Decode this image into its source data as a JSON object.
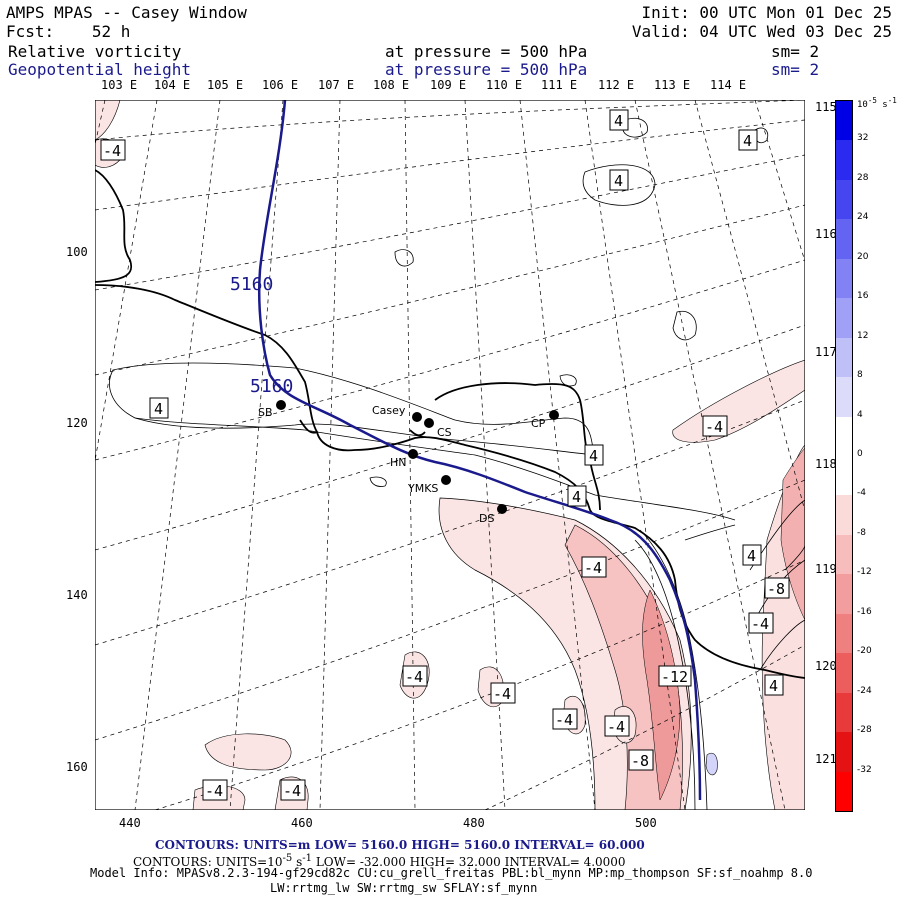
{
  "header": {
    "title": "AMPS MPAS -- Casey Window",
    "init": "Init: 00 UTC Mon 01 Dec 25",
    "fcst_label": "Fcst:",
    "fcst_value": "52 h",
    "valid": "Valid: 04 UTC Wed 03 Dec 25",
    "field1": "Relative vorticity",
    "field1_pressure": "at pressure =  500 hPa",
    "field1_sm": "sm= 2",
    "field2": "Geopotential height",
    "field2_pressure": "at pressure =  500 hPa",
    "field2_sm": "sm= 2"
  },
  "lon_top_labels": [
    "103 E",
    "104 E",
    "105 E",
    "106 E",
    "107 E",
    "108 E",
    "109 E",
    "110 E",
    "111 E",
    "112 E",
    "113 E",
    "114 E"
  ],
  "lon_right_labels": [
    "115 E",
    "116 E",
    "117 E",
    "118 E",
    "119 E",
    "120 E",
    "121 E"
  ],
  "x_ticks": [
    "440",
    "460",
    "480",
    "500"
  ],
  "y_ticks": [
    "100",
    "120",
    "140",
    "160"
  ],
  "stations": [
    {
      "name": "SB"
    },
    {
      "name": "Casey"
    },
    {
      "name": "CS"
    },
    {
      "name": "CP"
    },
    {
      "name": "HN"
    },
    {
      "name": "YMKS"
    },
    {
      "name": "DS"
    }
  ],
  "contour_labels": {
    "height": [
      "5160",
      "5160"
    ],
    "vorticity": [
      "-4",
      "4",
      "4",
      "4",
      "4",
      "4",
      "4",
      "-4",
      "-4",
      "4",
      "4",
      "4",
      "-4",
      "-4",
      "-4",
      "-4",
      "-4",
      "-4",
      "-4",
      "-12",
      "-8",
      "-8",
      "-4",
      "4"
    ]
  },
  "colorbar": {
    "unit": "10^-5 s^-1",
    "unit_base": "10",
    "unit_exp": "-5",
    "unit_tail": "s",
    "unit_tail_exp": "-1",
    "labels": [
      "32",
      "28",
      "24",
      "20",
      "16",
      "12",
      "8",
      "4",
      "0",
      "-4",
      "-8",
      "-12",
      "-16",
      "-20",
      "-24",
      "-28",
      "-32"
    ],
    "colors": [
      "#0000e6",
      "#2a2af0",
      "#4646f0",
      "#6464f2",
      "#8282f4",
      "#a0a0f6",
      "#c0c0f8",
      "#dcdcfa",
      "#ffffff",
      "#ffffff",
      "#fbdada",
      "#f7bcbc",
      "#f39e9e",
      "#ef8080",
      "#ec5e5e",
      "#e83a3a",
      "#e41212",
      "#ff0000"
    ]
  },
  "footer": {
    "line1_label": "CONTOURS:  UNITS=m  LOW=  5160.0           HIGH=  5160.0          INTERVAL=   60.000",
    "line2_label": "CONTOURS:  UNITS=10",
    "line2_exp": "-5",
    "line2_unit": "s",
    "line2_unit_exp": "-1",
    "line2_rest": "  LOW= -32.000       HIGH=  32.000        INTERVAL=    4.0000",
    "model_info": "Model Info: MPASv8.2.3-194-gf29cd82c CU:cu_grell_freitas PBL:bl_mynn MP:mp_thompson SF:sf_noahmp 8.0",
    "model_info2": "LW:rrtmg_lw SW:rrtmg_sw SFLAY:sf_mynn"
  },
  "colors": {
    "height_contour": "#1a1a8c",
    "header_blue": "#1a1a8c",
    "neg_light": "#fbe2e2",
    "neg_mid": "#f5b6b6",
    "neg_dark": "#ee8484",
    "pos_light": "#d4d4fa"
  }
}
